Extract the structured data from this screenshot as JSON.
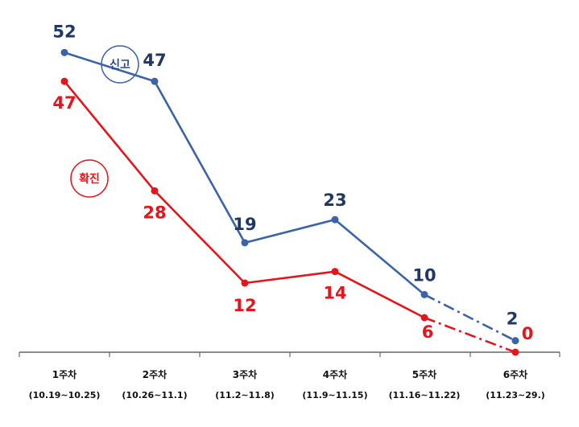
{
  "chart_data": {
    "type": "line",
    "categories": [
      {
        "week": "1주차",
        "range": "(10.19~10.25)"
      },
      {
        "week": "2주차",
        "range": "(10.26~11.1)"
      },
      {
        "week": "3주차",
        "range": "(11.2~11.8)"
      },
      {
        "week": "4주차",
        "range": "(11.9~11.15)"
      },
      {
        "week": "5주차",
        "range": "(11.16~11.22)"
      },
      {
        "week": "6주차",
        "range": "(11.23~29.)"
      }
    ],
    "series": [
      {
        "name": "신고",
        "color": "#3a63a8",
        "values": [
          52,
          47,
          19,
          23,
          10,
          2
        ],
        "dashed_last_segment": true
      },
      {
        "name": "확진",
        "color": "#e8141c",
        "values": [
          47,
          28,
          12,
          14,
          6,
          0
        ],
        "dashed_last_segment": true
      }
    ],
    "ylim": [
      0,
      60
    ],
    "title": "",
    "xlabel": "",
    "ylabel": ""
  }
}
